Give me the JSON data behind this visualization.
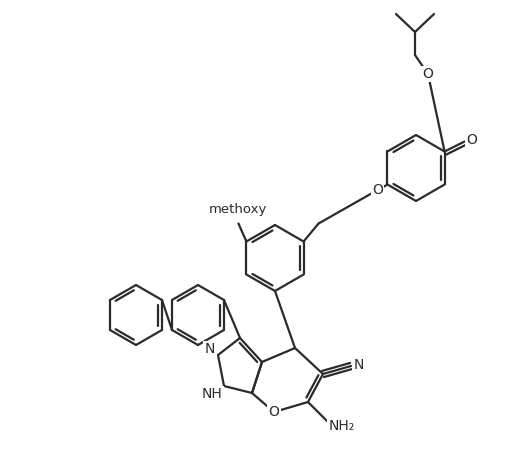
{
  "background_color": "#ffffff",
  "line_color": "#2b2b2b",
  "line_width": 1.6,
  "font_size": 10.0,
  "fig_width": 5.26,
  "fig_height": 4.73,
  "dpi": 100,
  "atom_labels": {
    "O": "O",
    "N": "N",
    "NH": "NH",
    "NH2": "NH₂",
    "methoxy": "methoxy",
    "CN_N": "N"
  }
}
